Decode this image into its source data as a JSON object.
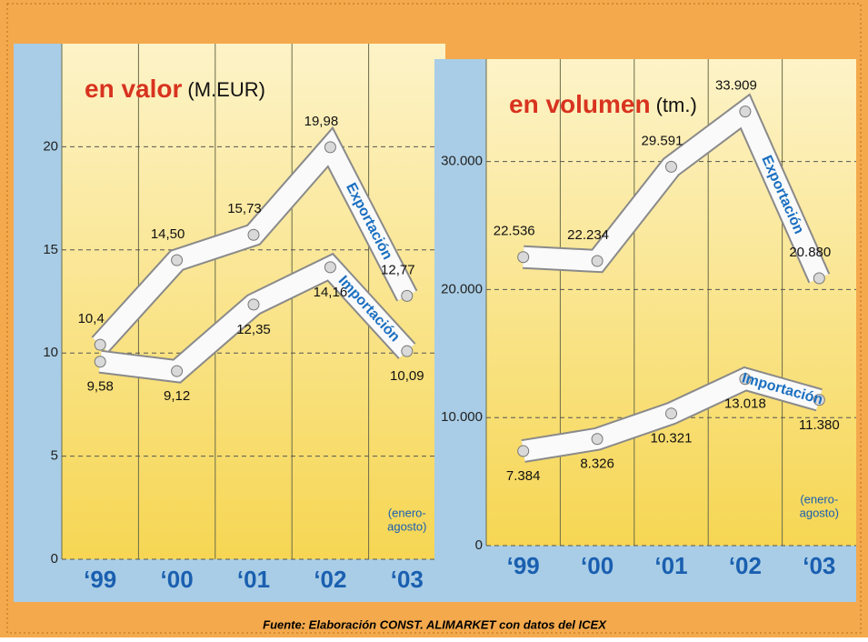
{
  "chart_data": [
    {
      "type": "line",
      "title": "en valor",
      "subtitle": "(M.EUR)",
      "categories": [
        "‘99",
        "‘00",
        "‘01",
        "‘02",
        "‘03"
      ],
      "series": [
        {
          "name": "Exportación",
          "color": "#1a6fc0",
          "values": [
            10.4,
            14.5,
            15.73,
            19.98,
            12.77
          ],
          "value_labels": [
            "10,4",
            "14,50",
            "15,73",
            "19,98",
            "12,77"
          ]
        },
        {
          "name": "Importación",
          "color": "#1a6fc0",
          "values": [
            9.58,
            9.12,
            12.35,
            14.16,
            10.09
          ],
          "value_labels": [
            "9,58",
            "9,12",
            "12,35",
            "14,16",
            "10,09"
          ]
        }
      ],
      "ylim": [
        0,
        25
      ],
      "yticks": [
        0,
        5,
        10,
        15,
        20
      ],
      "grid": true,
      "annotation": [
        "(enero-",
        "agosto)"
      ]
    },
    {
      "type": "line",
      "title": "en volumen",
      "subtitle": "(tm.)",
      "categories": [
        "‘99",
        "‘00",
        "‘01",
        "‘02",
        "‘03"
      ],
      "series": [
        {
          "name": "Exportación",
          "color": "#1a6fc0",
          "values": [
            22536,
            22234,
            29591,
            33909,
            20880
          ],
          "value_labels": [
            "22.536",
            "22.234",
            "29.591",
            "33.909",
            "20.880"
          ]
        },
        {
          "name": "Importación",
          "color": "#1a6fc0",
          "values": [
            7384,
            8326,
            10321,
            13018,
            11380
          ],
          "value_labels": [
            "7.384",
            "8.326",
            "10.321",
            "13.018",
            "11.380"
          ]
        }
      ],
      "ylim": [
        0,
        38000
      ],
      "yticks": [
        0,
        {
          "value": 10000,
          "label": "10.000"
        },
        {
          "value": 20000,
          "label": "20.000"
        },
        {
          "value": 30000,
          "label": "30.000"
        }
      ],
      "grid": true,
      "annotation": [
        "(enero-",
        "agosto)"
      ]
    }
  ],
  "source": "Fuente: Elaboración CONST. ALIMARKET con datos del ICEX"
}
